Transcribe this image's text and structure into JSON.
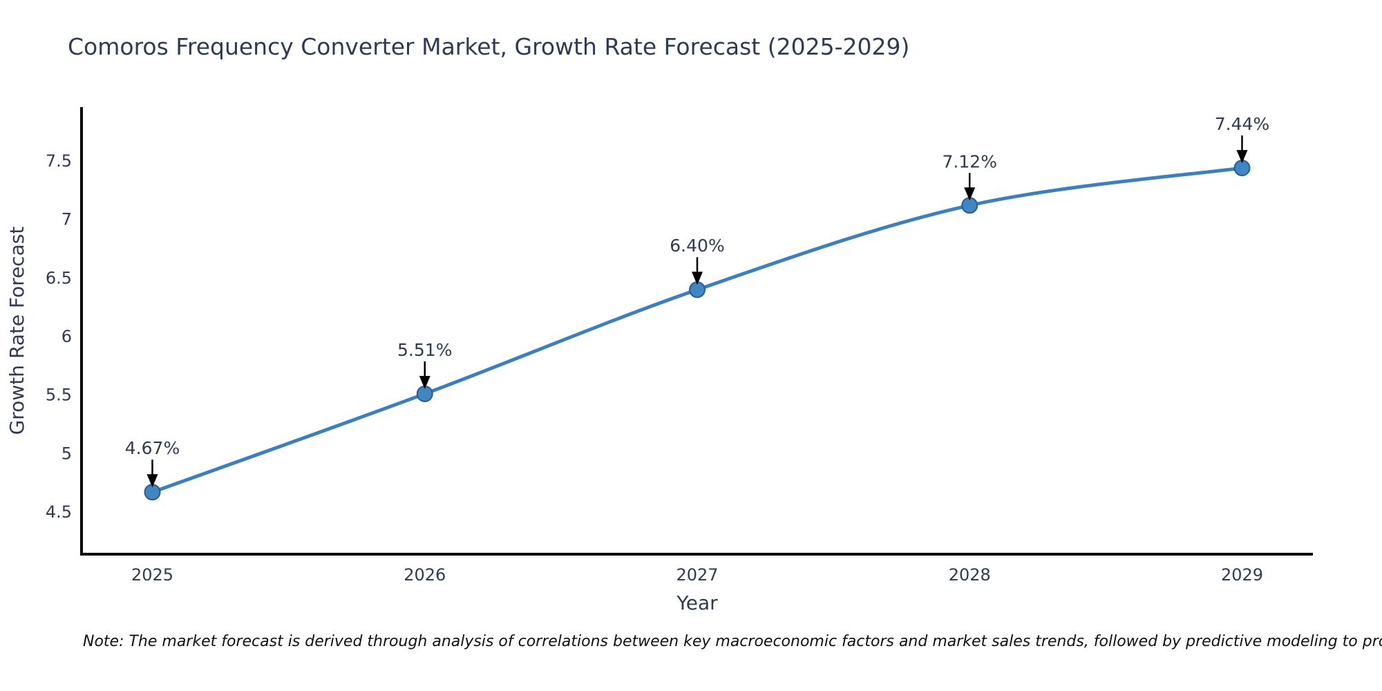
{
  "title": "Comoros Frequency Converter Market, Growth Rate Forecast (2025-2029)",
  "note": "Note: The market forecast is derived through analysis of correlations between key macroeconomic factors and market sales trends, followed by predictive modeling to project future sales",
  "chart_data": {
    "type": "line",
    "title": "Comoros Frequency Converter Market, Growth Rate Forecast (2025-2029)",
    "xlabel": "Year",
    "ylabel": "Growth Rate Forecast",
    "x": [
      2025,
      2026,
      2027,
      2028,
      2029
    ],
    "values": [
      4.67,
      5.51,
      6.4,
      7.12,
      7.44
    ],
    "point_labels": [
      "4.67%",
      "5.51%",
      "6.40%",
      "7.12%",
      "7.44%"
    ],
    "xtick_labels": [
      "2025",
      "2026",
      "2027",
      "2028",
      "2029"
    ],
    "yticks": [
      4.5,
      5,
      5.5,
      6,
      6.5,
      7,
      7.5
    ],
    "ytick_labels": [
      "4.5",
      "5",
      "5.5",
      "6",
      "6.5",
      "7",
      "7.5"
    ],
    "xlim": [
      2024.74,
      2029.26
    ],
    "ylim": [
      4.14,
      7.96
    ],
    "grid": false,
    "legend": "none",
    "line_smoothing": true,
    "colors": {
      "line": "#3d7ebf",
      "marker_fill": "#4186c2",
      "marker_edge": "#2a5d8c",
      "annotation_text": "#2f3b52",
      "arrow": "#000000",
      "axis_line": "#000000",
      "tick_text": "#2f3b52",
      "axis_title_text": "#2f3b52",
      "title_text": "#2f3b52",
      "background": "#ffffff"
    }
  }
}
